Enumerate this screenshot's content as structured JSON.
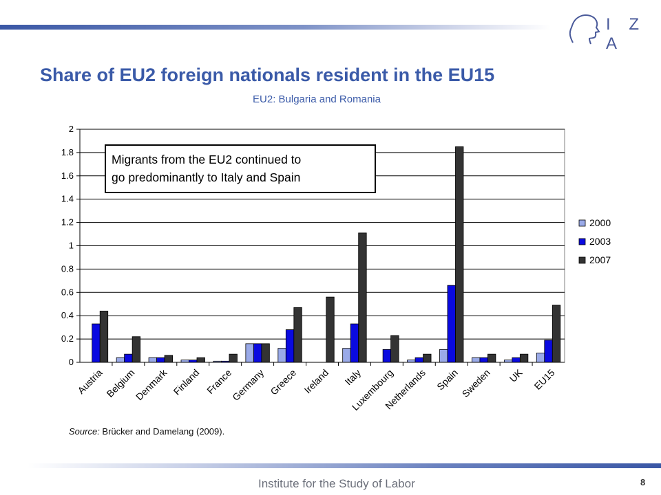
{
  "header": {
    "logo_text": "I Z A",
    "logo_icon": "head-profile-icon"
  },
  "title": "Share of EU2 foreign nationals resident in the EU15",
  "subtitle": "EU2: Bulgaria and Romania",
  "annotation": "Migrants from the EU2 continued to\ngo predominantly to Italy and Spain",
  "source": {
    "prefix": "Source:",
    "text": " Brücker and Damelang (2009)."
  },
  "footer": {
    "institute": "Institute for the Study of Labor",
    "page": "8"
  },
  "chart_data": {
    "type": "bar",
    "categories": [
      "Austria",
      "Belgium",
      "Denmark",
      "Finland",
      "France",
      "Germany",
      "Greece",
      "Ireland",
      "Italy",
      "Luxembourg",
      "Netherlands",
      "Spain",
      "Sweden",
      "UK",
      "EU15"
    ],
    "series": [
      {
        "name": "2000",
        "color": "#9aaae8",
        "values": [
          0.0,
          0.04,
          0.04,
          0.02,
          0.01,
          0.16,
          0.12,
          0.0,
          0.12,
          0.0,
          0.02,
          0.11,
          0.04,
          0.02,
          0.08
        ]
      },
      {
        "name": "2003",
        "color": "#0a0ae0",
        "values": [
          0.33,
          0.07,
          0.04,
          0.02,
          0.01,
          0.16,
          0.28,
          0.0,
          0.33,
          0.11,
          0.04,
          0.66,
          0.04,
          0.04,
          0.19
        ]
      },
      {
        "name": "2007",
        "color": "#333333",
        "values": [
          0.44,
          0.22,
          0.06,
          0.04,
          0.07,
          0.16,
          0.47,
          0.56,
          1.11,
          0.23,
          0.07,
          1.85,
          0.07,
          0.07,
          0.49
        ]
      }
    ],
    "yticks": [
      "0",
      "0.2",
      "0.4",
      "0.6",
      "0.8",
      "1",
      "1.2",
      "1.4",
      "1.6",
      "1.8",
      "2"
    ],
    "ylim": [
      0,
      2
    ],
    "grid": true,
    "legend": "right"
  }
}
